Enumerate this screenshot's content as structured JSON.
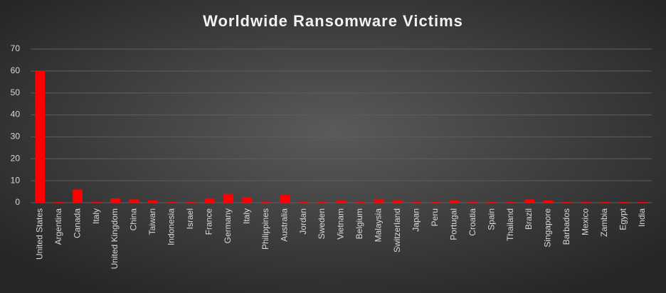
{
  "chart_data": {
    "type": "bar",
    "title": "Worldwide Ransomware Victims",
    "categories": [
      "United States",
      "Argentina",
      "Canada",
      "Italy",
      "United Kingdom",
      "China",
      "Taiwan",
      "Indonesia",
      "Israel",
      "France",
      "Germany",
      "Italy",
      "Philippines",
      "Australia",
      "Jordan",
      "Sweden",
      "Vietnam",
      "Belgium",
      "Malaysia",
      "Switzerland",
      "Japan",
      "Peru",
      "Portugal",
      "Croatia",
      "Spain",
      "Thailand",
      "Brazil",
      "Singapore",
      "Barbados",
      "Mexico",
      "Zambia",
      "Egypt",
      "India"
    ],
    "values": [
      60,
      0.3,
      6,
      0.3,
      2,
      1.5,
      1,
      0.3,
      0.3,
      2,
      4,
      2.5,
      0.3,
      3.5,
      0.3,
      0.3,
      1,
      0.3,
      1.5,
      1,
      0.3,
      0.3,
      1,
      0.3,
      0.3,
      0.3,
      1.5,
      1,
      0.3,
      0.3,
      0.3,
      0.3,
      0.3
    ],
    "color": "#ff0000",
    "ylim": [
      0,
      70
    ],
    "yticks": [
      0,
      10,
      20,
      30,
      40,
      50,
      60,
      70
    ],
    "grid": true
  }
}
